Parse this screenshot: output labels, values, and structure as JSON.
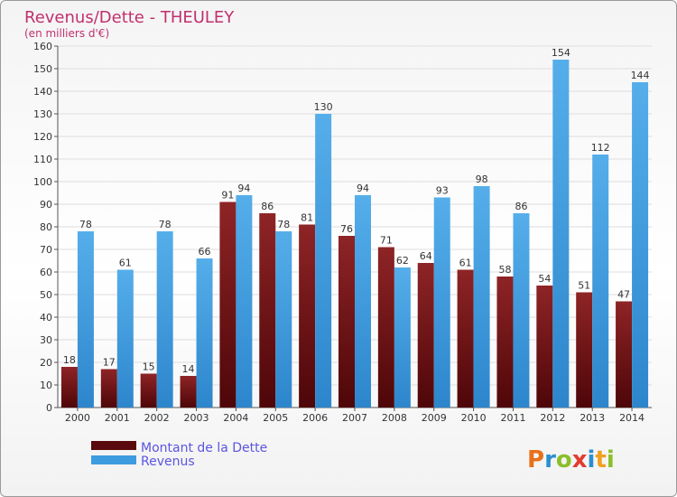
{
  "chart_data": {
    "type": "bar",
    "title": "Revenus/Dette - THEULEY",
    "subtitle": "(en milliers d'€)",
    "categories": [
      "2000",
      "2001",
      "2002",
      "2003",
      "2004",
      "2005",
      "2006",
      "2007",
      "2008",
      "2009",
      "2010",
      "2011",
      "2012",
      "2013",
      "2014"
    ],
    "series": [
      {
        "name": "Montant de la Dette",
        "color": "#7a1416",
        "values": [
          18,
          17,
          15,
          14,
          91,
          86,
          81,
          76,
          71,
          64,
          61,
          58,
          54,
          51,
          47
        ]
      },
      {
        "name": "Revenus",
        "color": "#3d9be0",
        "values": [
          78,
          61,
          78,
          66,
          94,
          78,
          130,
          94,
          62,
          93,
          98,
          86,
          154,
          112,
          144
        ]
      }
    ],
    "ylim": [
      0,
      160
    ],
    "yticks": [
      0,
      10,
      20,
      30,
      40,
      50,
      60,
      70,
      80,
      90,
      100,
      110,
      120,
      130,
      140,
      150,
      160
    ],
    "grid": true,
    "legend_position": "bottom-left"
  },
  "logo": {
    "text": "Proxiti",
    "letters": [
      "P",
      "r",
      "o",
      "x",
      "i",
      "t",
      "i"
    ]
  }
}
